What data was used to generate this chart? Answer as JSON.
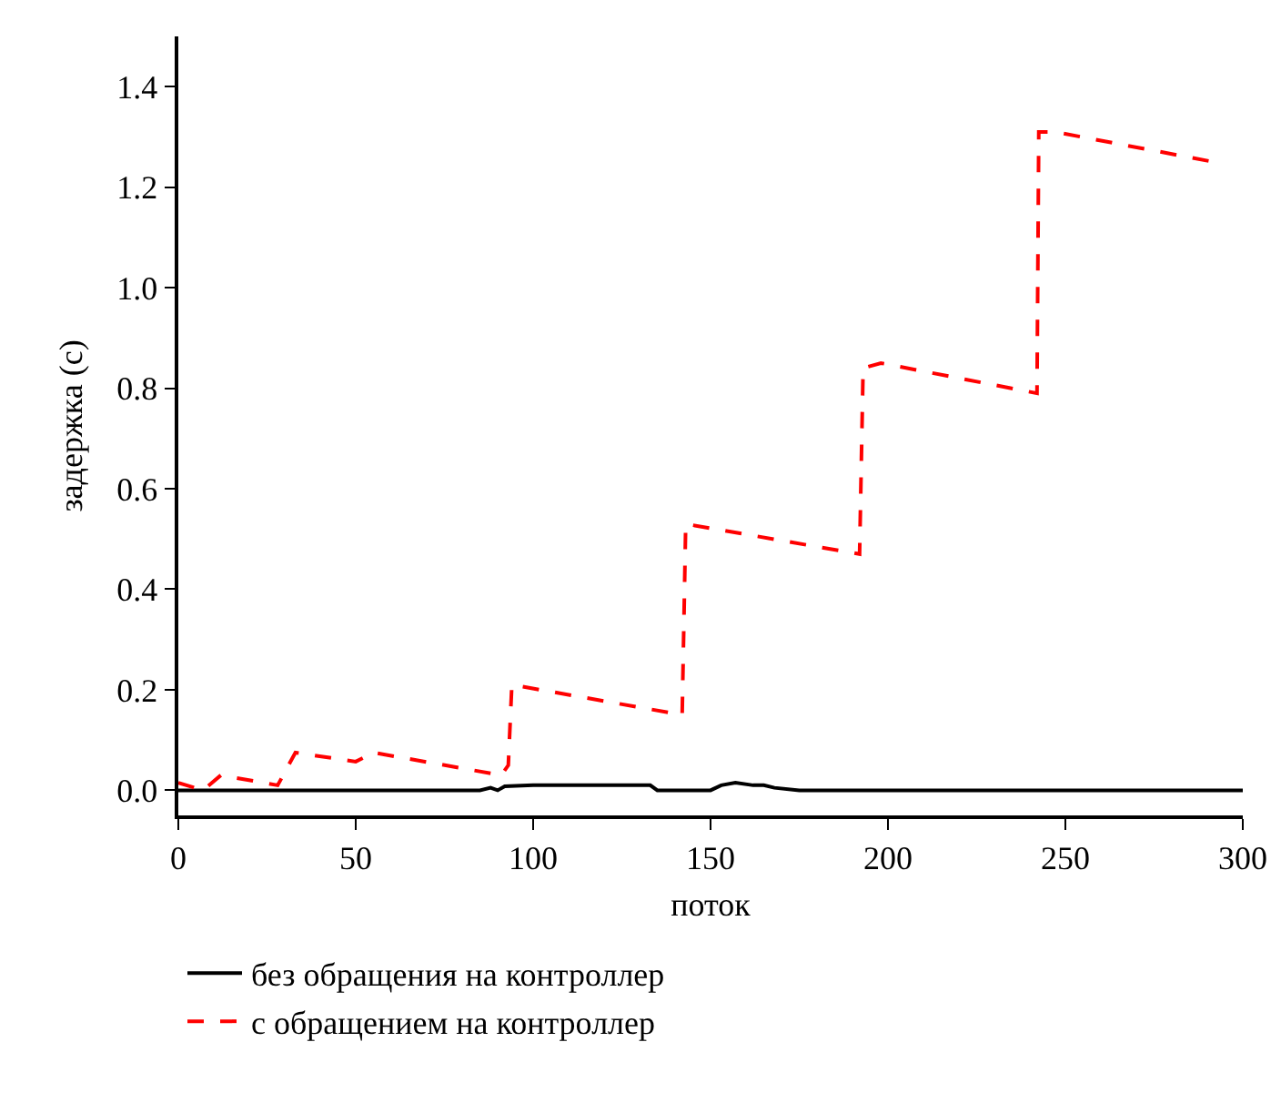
{
  "chart_data": {
    "type": "line",
    "xlabel": "поток",
    "ylabel": "задержка (с)",
    "xlim": [
      0,
      300
    ],
    "xticks": [
      0,
      50,
      100,
      150,
      200,
      250,
      300
    ],
    "ylim": [
      -0.05,
      1.5
    ],
    "yticks": [
      {
        "value": 0,
        "label": "0.0"
      },
      {
        "value": 0.2,
        "label": "0.2"
      },
      {
        "value": 0.4,
        "label": "0.4"
      },
      {
        "value": 0.6,
        "label": "0.6"
      },
      {
        "value": 0.8,
        "label": "0.8"
      },
      {
        "value": 1,
        "label": "1.0"
      },
      {
        "value": 1.2,
        "label": "1.2"
      },
      {
        "value": 1.4,
        "label": "1.4"
      }
    ],
    "grid": false,
    "legend": "bottom",
    "series": [
      {
        "name": "без обращения на контроллер",
        "color": "#000000",
        "line_style": "solid",
        "x": [
          0,
          85,
          88,
          90,
          92,
          100,
          120,
          133,
          135,
          150,
          153,
          157,
          162,
          165,
          168,
          175,
          200,
          250,
          300
        ],
        "values": [
          0,
          0,
          0.005,
          0,
          0.008,
          0.01,
          0.01,
          0.01,
          0,
          0,
          0.01,
          0.015,
          0.01,
          0.01,
          0.005,
          0,
          0,
          0,
          0
        ]
      },
      {
        "name": "с обращением на контроллер",
        "color": "#ff0000",
        "line_style": "dashed",
        "x": [
          0,
          7,
          12,
          28,
          33,
          50,
          55,
          91,
          93,
          94,
          142,
          143,
          192,
          193,
          198,
          242,
          242.5,
          247,
          292
        ],
        "values": [
          0.015,
          0,
          0.03,
          0.01,
          0.075,
          0.057,
          0.075,
          0.03,
          0.05,
          0.21,
          0.15,
          0.53,
          0.47,
          0.84,
          0.85,
          0.79,
          1.31,
          1.31,
          1.25
        ]
      }
    ]
  }
}
